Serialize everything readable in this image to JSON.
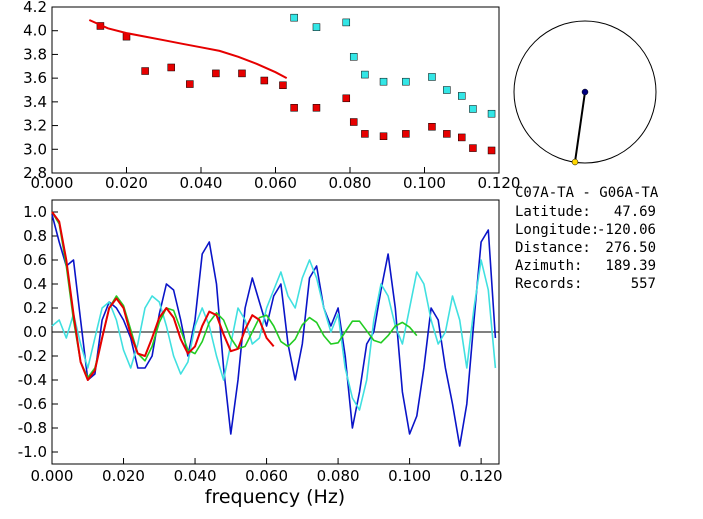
{
  "colors": {
    "red": "#e60000",
    "cyan": "#33e6e6",
    "blue": "#0a14c8",
    "lightcyan": "#40e0e0",
    "green": "#22cc22",
    "navy": "#000080",
    "yellow": "#ffd700"
  },
  "chart_data": [
    {
      "type": "scatter",
      "name": "dispersion",
      "xlim": [
        0.0,
        0.12
      ],
      "ylim": [
        2.8,
        4.2
      ],
      "xticks": [
        "0.000",
        "0.020",
        "0.040",
        "0.060",
        "0.080",
        "0.100",
        "0.120"
      ],
      "yticks": [
        "2.8",
        "3.0",
        "3.2",
        "3.4",
        "3.6",
        "3.8",
        "4.0",
        "4.2"
      ],
      "series": [
        {
          "name": "red-squares",
          "color": "red",
          "points": [
            [
              0.013,
              4.04
            ],
            [
              0.02,
              3.95
            ],
            [
              0.025,
              3.66
            ],
            [
              0.032,
              3.69
            ],
            [
              0.037,
              3.55
            ],
            [
              0.044,
              3.64
            ],
            [
              0.051,
              3.64
            ],
            [
              0.057,
              3.58
            ],
            [
              0.062,
              3.54
            ],
            [
              0.065,
              3.35
            ],
            [
              0.071,
              3.35
            ],
            [
              0.079,
              3.43
            ],
            [
              0.081,
              3.23
            ],
            [
              0.084,
              3.13
            ],
            [
              0.089,
              3.11
            ],
            [
              0.095,
              3.13
            ],
            [
              0.102,
              3.19
            ],
            [
              0.106,
              3.13
            ],
            [
              0.11,
              3.1
            ],
            [
              0.113,
              3.01
            ],
            [
              0.118,
              2.99
            ]
          ]
        },
        {
          "name": "cyan-squares",
          "color": "cyan",
          "points": [
            [
              0.065,
              4.11
            ],
            [
              0.071,
              4.03
            ],
            [
              0.079,
              4.07
            ],
            [
              0.081,
              3.78
            ],
            [
              0.084,
              3.63
            ],
            [
              0.089,
              3.57
            ],
            [
              0.095,
              3.57
            ],
            [
              0.102,
              3.61
            ],
            [
              0.106,
              3.5
            ],
            [
              0.11,
              3.45
            ],
            [
              0.113,
              3.34
            ],
            [
              0.118,
              3.3
            ]
          ]
        },
        {
          "name": "red-curve",
          "color": "red",
          "line": [
            [
              0.01,
              4.09
            ],
            [
              0.015,
              4.02
            ],
            [
              0.02,
              3.98
            ],
            [
              0.025,
              3.95
            ],
            [
              0.03,
              3.92
            ],
            [
              0.035,
              3.89
            ],
            [
              0.04,
              3.86
            ],
            [
              0.045,
              3.83
            ],
            [
              0.05,
              3.78
            ],
            [
              0.055,
              3.72
            ],
            [
              0.06,
              3.65
            ],
            [
              0.063,
              3.6
            ]
          ]
        }
      ]
    },
    {
      "type": "line",
      "name": "correlation",
      "xlim": [
        0.0,
        0.125
      ],
      "ylim": [
        -1.1,
        1.1
      ],
      "xlabel": "frequency (Hz)",
      "xticks": [
        "0.000",
        "0.020",
        "0.040",
        "0.060",
        "0.080",
        "0.100",
        "0.120"
      ],
      "yticks": [
        "1.0",
        "0.8",
        "0.6",
        "0.4",
        "0.2",
        "0.0",
        "-0.2",
        "-0.4",
        "-0.6",
        "-0.8",
        "-1.0"
      ],
      "series": [
        {
          "name": "blue",
          "color": "blue",
          "x": [
            0.0,
            0.002,
            0.004,
            0.006,
            0.008,
            0.01,
            0.012,
            0.014,
            0.016,
            0.018,
            0.02,
            0.022,
            0.024,
            0.026,
            0.028,
            0.03,
            0.032,
            0.034,
            0.036,
            0.038,
            0.04,
            0.042,
            0.044,
            0.046,
            0.048,
            0.05,
            0.052,
            0.054,
            0.056,
            0.058,
            0.06,
            0.062,
            0.064,
            0.066,
            0.068,
            0.07,
            0.072,
            0.074,
            0.076,
            0.078,
            0.08,
            0.082,
            0.084,
            0.086,
            0.088,
            0.09,
            0.092,
            0.094,
            0.096,
            0.098,
            0.1,
            0.102,
            0.104,
            0.106,
            0.108,
            0.11,
            0.112,
            0.114,
            0.116,
            0.118,
            0.12,
            0.122,
            0.124
          ],
          "y": [
            0.98,
            0.75,
            0.55,
            0.6,
            0.1,
            -0.4,
            -0.35,
            0.1,
            0.25,
            0.2,
            0.1,
            -0.05,
            -0.3,
            -0.3,
            -0.2,
            0.15,
            0.4,
            0.35,
            0.1,
            -0.2,
            0.1,
            0.65,
            0.75,
            0.4,
            -0.3,
            -0.85,
            -0.4,
            0.2,
            0.45,
            0.25,
            0.05,
            0.3,
            0.4,
            -0.1,
            -0.4,
            -0.1,
            0.45,
            0.55,
            0.2,
            0.05,
            0.2,
            -0.2,
            -0.8,
            -0.5,
            -0.1,
            0.0,
            0.35,
            0.65,
            0.2,
            -0.5,
            -0.85,
            -0.7,
            -0.3,
            0.2,
            0.1,
            -0.3,
            -0.6,
            -0.95,
            -0.6,
            0.1,
            0.75,
            0.85,
            -0.05
          ]
        },
        {
          "name": "lightcyan",
          "color": "lightcyan",
          "x": [
            0.0,
            0.002,
            0.004,
            0.006,
            0.008,
            0.01,
            0.012,
            0.014,
            0.016,
            0.018,
            0.02,
            0.022,
            0.024,
            0.026,
            0.028,
            0.03,
            0.032,
            0.034,
            0.036,
            0.038,
            0.04,
            0.042,
            0.044,
            0.046,
            0.048,
            0.05,
            0.052,
            0.054,
            0.056,
            0.058,
            0.06,
            0.062,
            0.064,
            0.066,
            0.068,
            0.07,
            0.072,
            0.074,
            0.076,
            0.078,
            0.08,
            0.082,
            0.084,
            0.086,
            0.088,
            0.09,
            0.092,
            0.094,
            0.096,
            0.098,
            0.1,
            0.102,
            0.104,
            0.106,
            0.108,
            0.11,
            0.112,
            0.114,
            0.116,
            0.118,
            0.12,
            0.122,
            0.124
          ],
          "y": [
            0.05,
            0.1,
            -0.05,
            0.15,
            -0.1,
            -0.3,
            -0.05,
            0.2,
            0.25,
            0.1,
            -0.15,
            -0.3,
            -0.1,
            0.2,
            0.3,
            0.25,
            0.05,
            -0.2,
            -0.35,
            -0.25,
            0.05,
            0.2,
            0.05,
            -0.2,
            -0.4,
            -0.1,
            0.2,
            0.1,
            -0.1,
            -0.05,
            0.2,
            0.35,
            0.5,
            0.3,
            0.2,
            0.45,
            0.6,
            0.45,
            0.2,
            0.0,
            0.15,
            -0.3,
            -0.55,
            -0.65,
            -0.4,
            0.1,
            0.4,
            0.3,
            0.05,
            -0.1,
            0.2,
            0.5,
            0.4,
            0.1,
            -0.1,
            0.0,
            0.3,
            0.1,
            -0.3,
            0.2,
            0.6,
            0.35,
            -0.3
          ]
        },
        {
          "name": "green",
          "color": "green",
          "x": [
            0.0,
            0.002,
            0.004,
            0.006,
            0.008,
            0.01,
            0.012,
            0.014,
            0.016,
            0.018,
            0.02,
            0.022,
            0.024,
            0.026,
            0.028,
            0.03,
            0.032,
            0.034,
            0.036,
            0.038,
            0.04,
            0.042,
            0.044,
            0.046,
            0.048,
            0.05,
            0.052,
            0.054,
            0.056,
            0.058,
            0.06,
            0.062,
            0.064,
            0.066,
            0.068,
            0.07,
            0.072,
            0.074,
            0.076,
            0.078,
            0.08,
            0.082,
            0.084,
            0.086,
            0.088,
            0.09,
            0.092,
            0.094,
            0.096,
            0.098,
            0.1,
            0.102
          ],
          "y": [
            1.0,
            0.9,
            0.55,
            0.1,
            -0.25,
            -0.38,
            -0.3,
            -0.05,
            0.2,
            0.3,
            0.22,
            0.02,
            -0.18,
            -0.24,
            -0.12,
            0.08,
            0.2,
            0.18,
            0.02,
            -0.15,
            -0.18,
            -0.08,
            0.08,
            0.16,
            0.1,
            -0.05,
            -0.14,
            -0.12,
            0.0,
            0.12,
            0.14,
            0.05,
            -0.08,
            -0.12,
            -0.06,
            0.06,
            0.12,
            0.08,
            -0.03,
            -0.1,
            -0.09,
            0.0,
            0.09,
            0.09,
            0.01,
            -0.07,
            -0.09,
            -0.03,
            0.05,
            0.08,
            0.04,
            -0.03
          ]
        },
        {
          "name": "red",
          "color": "red",
          "x": [
            0.0,
            0.002,
            0.004,
            0.006,
            0.008,
            0.01,
            0.012,
            0.014,
            0.016,
            0.018,
            0.02,
            0.022,
            0.024,
            0.026,
            0.028,
            0.03,
            0.032,
            0.034,
            0.036,
            0.038,
            0.04,
            0.042,
            0.044,
            0.046,
            0.048,
            0.05,
            0.052,
            0.054,
            0.056,
            0.058,
            0.06,
            0.062
          ],
          "y": [
            1.0,
            0.92,
            0.6,
            0.15,
            -0.25,
            -0.4,
            -0.32,
            -0.05,
            0.2,
            0.28,
            0.2,
            -0.02,
            -0.18,
            -0.2,
            -0.05,
            0.12,
            0.2,
            0.12,
            -0.06,
            -0.18,
            -0.12,
            0.05,
            0.17,
            0.14,
            -0.02,
            -0.16,
            -0.14,
            0.02,
            0.14,
            0.1,
            -0.05,
            -0.12
          ]
        }
      ]
    }
  ],
  "map_points": {
    "station_a": "navy",
    "station_b": "yellow"
  },
  "info": {
    "title": "C07A-TA - G06A-TA",
    "rows": [
      {
        "label": "Latitude:",
        "value": "47.69"
      },
      {
        "label": "Longitude:",
        "value": "-120.06"
      },
      {
        "label": "Distance:",
        "value": "276.50"
      },
      {
        "label": "Azimuth:",
        "value": "189.39"
      },
      {
        "label": "Records:",
        "value": "557"
      }
    ]
  }
}
